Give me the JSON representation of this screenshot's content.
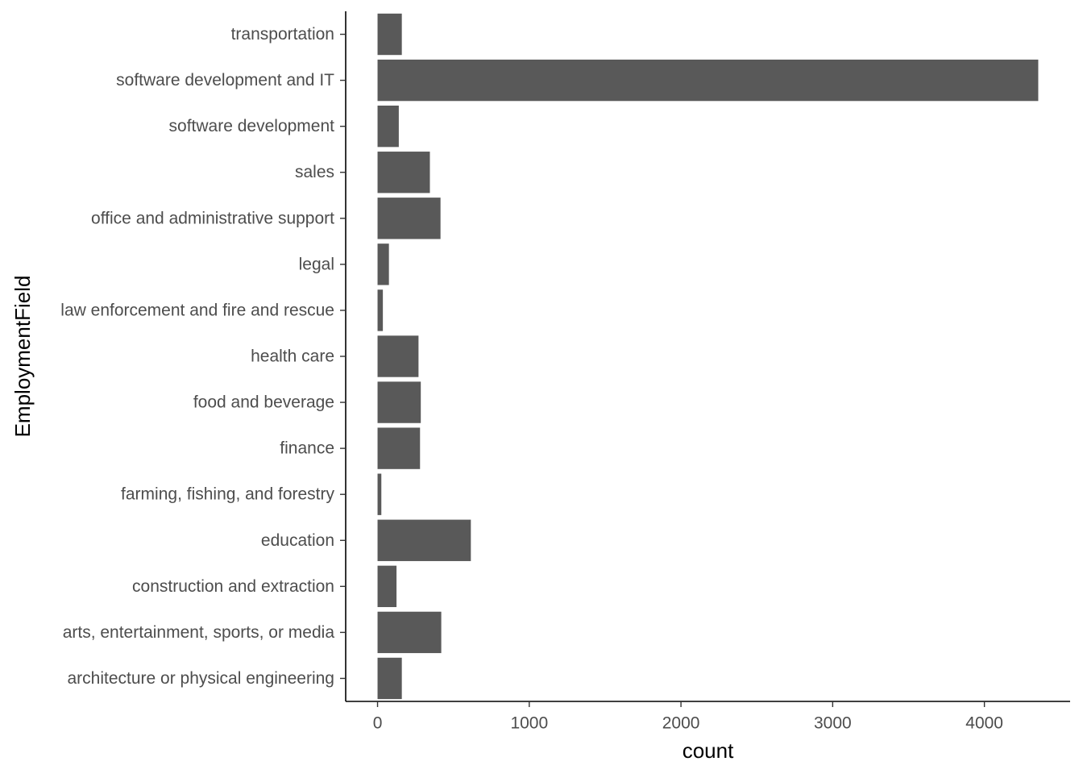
{
  "chart_data": {
    "type": "bar",
    "orientation": "horizontal",
    "categories": [
      "architecture or physical engineering",
      "arts, entertainment, sports, or media",
      "construction and extraction",
      "education",
      "farming, fishing, and forestry",
      "finance",
      "food and beverage",
      "health care",
      "law enforcement and fire and rescue",
      "legal",
      "office and administrative support",
      "sales",
      "software development",
      "software development and IT",
      "transportation"
    ],
    "values": [
      160,
      420,
      125,
      615,
      25,
      280,
      285,
      270,
      35,
      75,
      415,
      345,
      140,
      4355,
      160
    ],
    "xlabel": "count",
    "ylabel": "EmploymentField",
    "xlim": [
      -210,
      4565
    ],
    "x_ticks": [
      0,
      1000,
      2000,
      3000,
      4000
    ],
    "x_tick_labels": [
      "0",
      "1000",
      "2000",
      "3000",
      "4000"
    ],
    "grid": false,
    "bar_color": "#595959",
    "axis_color": "#000000",
    "tick_label_color": "#4d4d4d"
  }
}
